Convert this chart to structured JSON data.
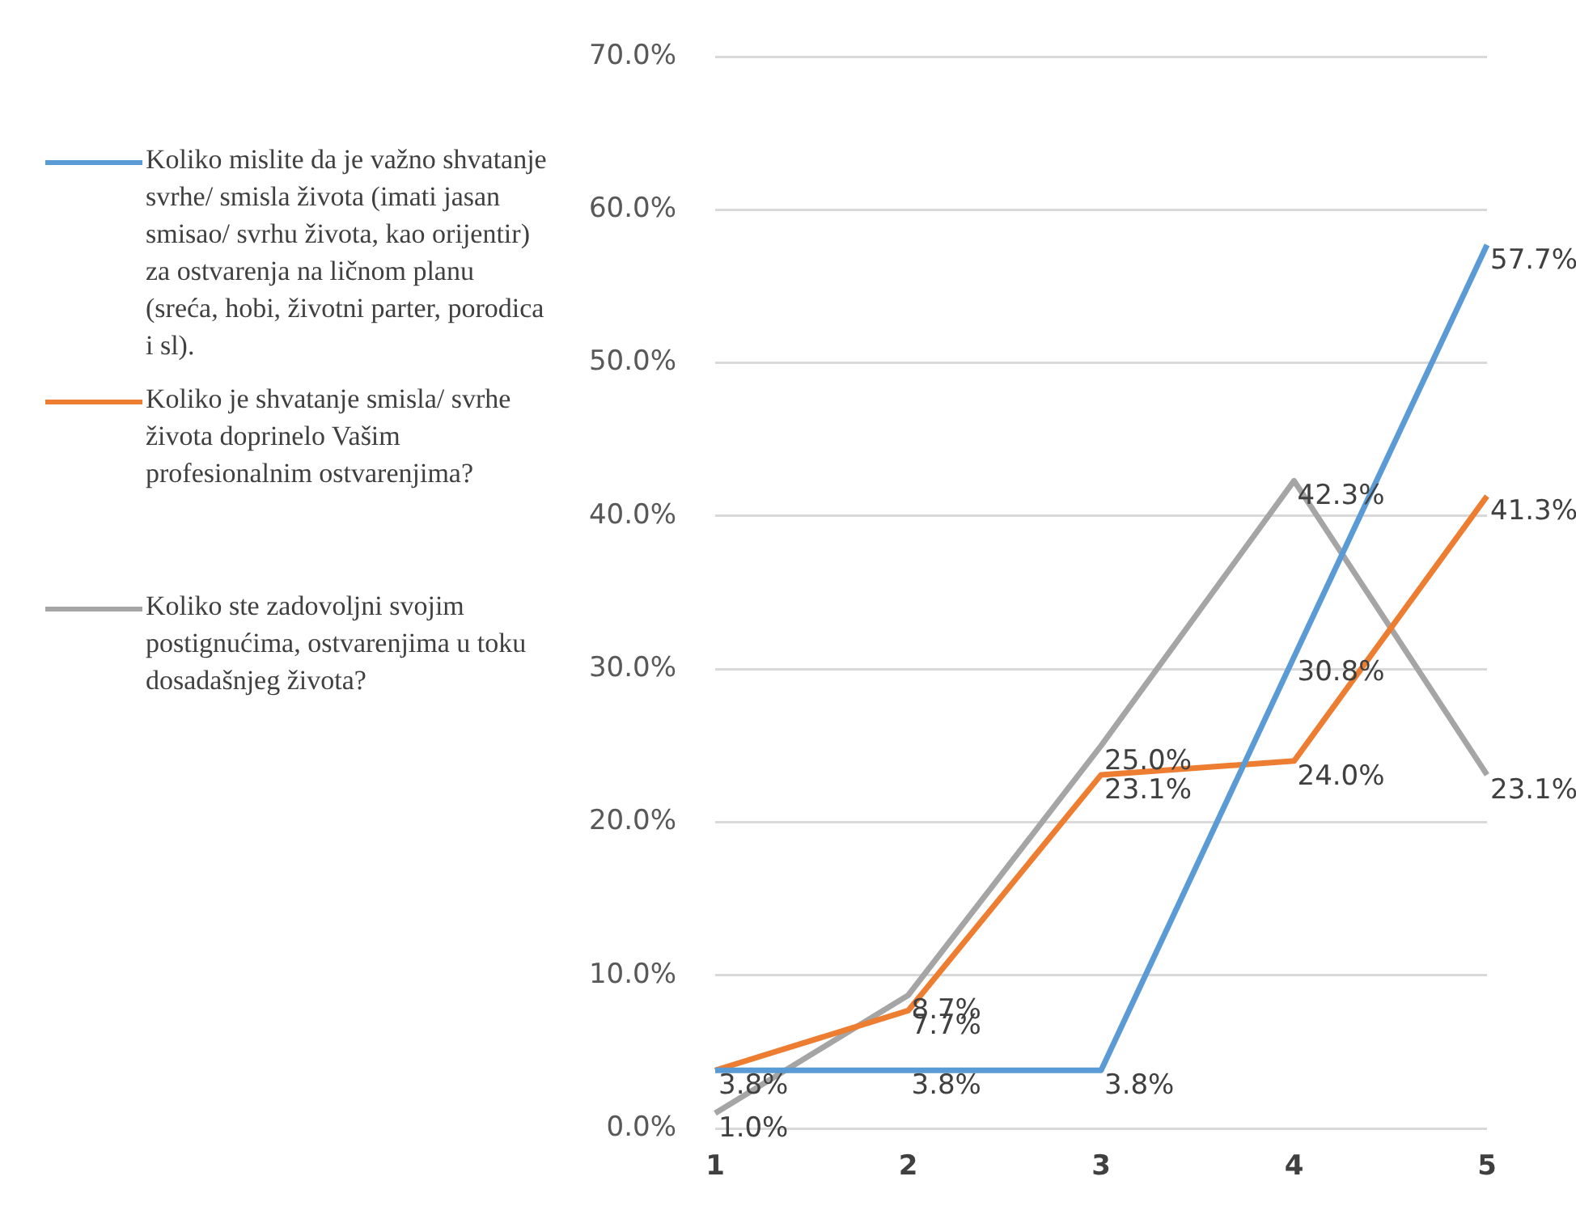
{
  "chart_data": {
    "type": "line",
    "categories": [
      "1",
      "2",
      "3",
      "4",
      "5"
    ],
    "series": [
      {
        "name": "Koliko mislite da je važno shvatanje svrhe/ smisla života (imati jasan smisao/ svrhu života, kao orijentir) za ostvarenja na ličnom planu (sreća, hobi, životni parter, porodica i sl).",
        "color": "#5b9bd5",
        "values": [
          3.8,
          3.8,
          3.8,
          30.8,
          57.7
        ],
        "value_labels": [
          "3.8%",
          "3.8%",
          "3.8%",
          "30.8%",
          "57.7%"
        ]
      },
      {
        "name": "Koliko je shvatanje smisla/ svrhe života doprinelo Vašim profesionalnim ostvarenjima?",
        "color": "#ed7d31",
        "values": [
          3.8,
          7.7,
          23.1,
          24.0,
          41.3
        ],
        "value_labels": [
          null,
          "7.7%",
          "23.1%",
          "24.0%",
          "41.3%"
        ]
      },
      {
        "name": "Koliko ste zadovoljni svojim postignućima, ostvarenjima u toku dosadašnjeg života?",
        "color": "#a5a5a5",
        "values": [
          1.0,
          8.7,
          25.0,
          42.3,
          23.1
        ],
        "value_labels": [
          "1.0%",
          "8.7%",
          "25.0%",
          "42.3%",
          "23.1%"
        ]
      }
    ],
    "ylim": [
      0,
      70
    ],
    "yticks": [
      {
        "value": 0,
        "label": "0.0%"
      },
      {
        "value": 10,
        "label": "10.0%"
      },
      {
        "value": 20,
        "label": "20.0%"
      },
      {
        "value": 30,
        "label": "30.0%"
      },
      {
        "value": 40,
        "label": "40.0%"
      },
      {
        "value": 50,
        "label": "50.0%"
      },
      {
        "value": 60,
        "label": "60.0%"
      },
      {
        "value": 70,
        "label": "70.0%"
      }
    ],
    "grid": "y",
    "legend": "left",
    "marker": "none",
    "line_style": "solid"
  }
}
